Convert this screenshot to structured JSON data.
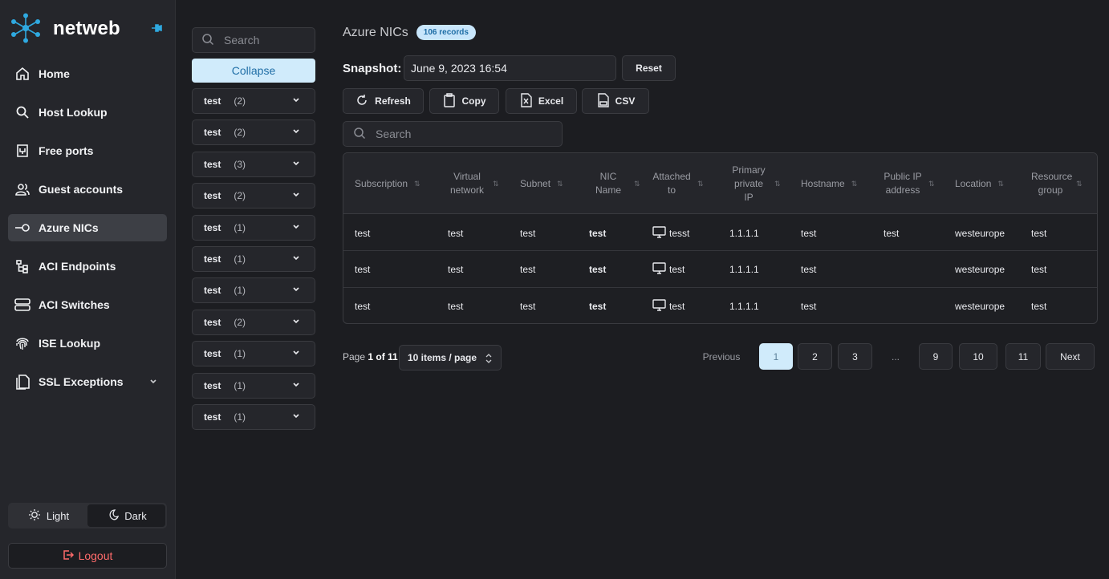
{
  "brand": {
    "name": "netweb"
  },
  "nav": [
    {
      "label": "Home",
      "icon": "home-icon"
    },
    {
      "label": "Host Lookup",
      "icon": "search-icon"
    },
    {
      "label": "Free ports",
      "icon": "port-icon"
    },
    {
      "label": "Guest accounts",
      "icon": "users-icon"
    },
    {
      "label": "Azure NICs",
      "icon": "nic-icon",
      "active": true
    },
    {
      "label": "ACI Endpoints",
      "icon": "hierarchy-icon"
    },
    {
      "label": "ACI Switches",
      "icon": "server-icon"
    },
    {
      "label": "ISE Lookup",
      "icon": "fingerprint-icon"
    },
    {
      "label": "SSL Exceptions",
      "icon": "document-icon"
    }
  ],
  "theme": {
    "light": "Light",
    "dark": "Dark",
    "selected": "Dark"
  },
  "logout": "Logout",
  "filters": {
    "search_placeholder": "Search",
    "collapse_label": "Collapse",
    "groups": [
      {
        "name": "test",
        "count": "(2)"
      },
      {
        "name": "test",
        "count": "(2)"
      },
      {
        "name": "test",
        "count": "(3)"
      },
      {
        "name": "test",
        "count": "(2)"
      },
      {
        "name": "test",
        "count": "(1)"
      },
      {
        "name": "test",
        "count": "(1)"
      },
      {
        "name": "test",
        "count": "(1)"
      },
      {
        "name": "test",
        "count": "(2)"
      },
      {
        "name": "test",
        "count": "(1)"
      },
      {
        "name": "test",
        "count": "(1)"
      },
      {
        "name": "test",
        "count": "(1)"
      }
    ]
  },
  "main": {
    "title": "Azure NICs",
    "badge": "106 records",
    "snapshot_label": "Snapshot:",
    "snapshot_value": "June 9, 2023 16:54",
    "reset_label": "Reset",
    "actions": {
      "refresh": "Refresh",
      "copy": "Copy",
      "excel": "Excel",
      "csv": "CSV"
    },
    "search_placeholder": "Search"
  },
  "table": {
    "columns": [
      "Subscription",
      "Virtual network",
      "Subnet",
      "NIC Name",
      "Attached to",
      "Primary private IP",
      "Hostname",
      "Public IP address",
      "Location",
      "Resource group"
    ],
    "rows": [
      [
        "test",
        "test",
        "test",
        "test",
        "tesst",
        "1.1.1.1",
        "test",
        "test",
        "westeurope",
        "test"
      ],
      [
        "test",
        "test",
        "test",
        "test",
        "test",
        "1.1.1.1",
        "test",
        "",
        "westeurope",
        "test"
      ],
      [
        "test",
        "test",
        "test",
        "test",
        "test",
        "1.1.1.1",
        "test",
        "",
        "westeurope",
        "test"
      ]
    ]
  },
  "pagination": {
    "page_prefix": "Page",
    "page_info": "1 of 11",
    "per_page": "10 items / page",
    "previous": "Previous",
    "pages": [
      "1",
      "2",
      "3",
      "...",
      "9",
      "10",
      "11"
    ],
    "current": "1",
    "next": "Next"
  }
}
